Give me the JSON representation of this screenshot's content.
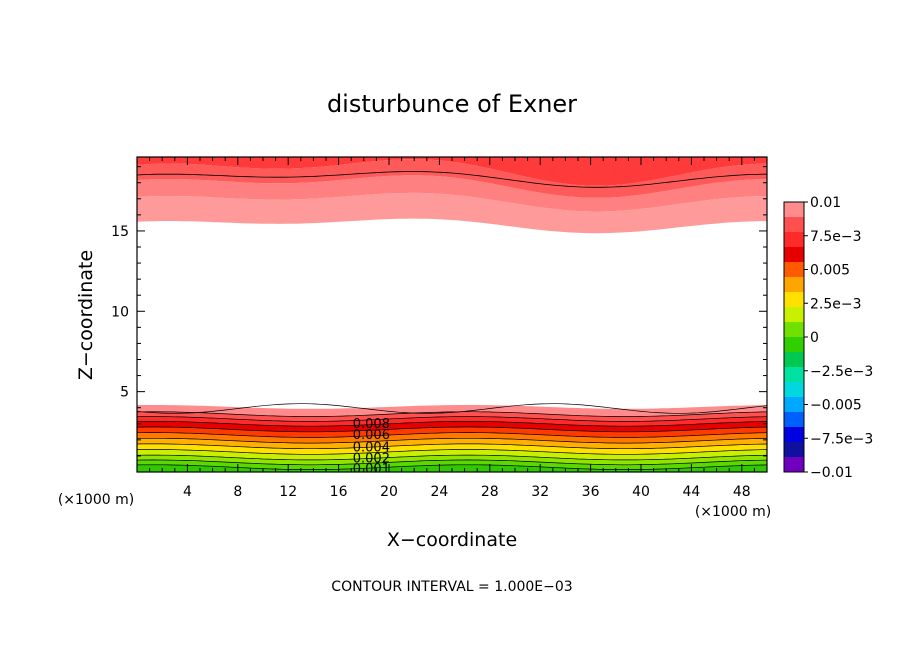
{
  "chart_data": {
    "type": "contour",
    "title": "disturbunce of Exner",
    "xlabel": "X−coordinate",
    "ylabel": "Z−coordinate",
    "x_unit": "(×1000 m)",
    "footer": "CONTOUR INTERVAL = 1.000E−03",
    "xlim": [
      0,
      50
    ],
    "ylim": [
      0,
      19.6
    ],
    "xticks": [
      4,
      8,
      12,
      16,
      20,
      24,
      28,
      32,
      36,
      40,
      44,
      48
    ],
    "yticks": [
      5,
      10,
      15
    ],
    "contour_interval": 0.001,
    "contour_labels": [
      "0.008",
      "0.006",
      "0.004",
      "0.002",
      "0.001"
    ],
    "colorbar": {
      "labels": [
        "0.01",
        "7.5e−3",
        "0.005",
        "2.5e−3",
        "0",
        "−2.5e−3",
        "−0.005",
        "−7.5e−3",
        "−0.01"
      ],
      "colors": [
        "#ff8c8c",
        "#ff5050",
        "#ff2a2a",
        "#e60000",
        "#ff5a00",
        "#ffa500",
        "#ffe000",
        "#c8f000",
        "#70e000",
        "#30d000",
        "#00c850",
        "#00e0a0",
        "#00d8e0",
        "#00a8ff",
        "#0060ff",
        "#0000e0",
        "#1010a0",
        "#7000c0"
      ]
    },
    "bands": [
      {
        "region": "lower",
        "z_low": 0.0,
        "value": 0.0105,
        "color": "#30c800"
      },
      {
        "region": "lower",
        "z_low": 0.3,
        "value": 0.0095,
        "color": "#5ad800"
      },
      {
        "region": "lower",
        "z_low": 0.6,
        "value": 0.0085,
        "color": "#90e400"
      },
      {
        "region": "lower",
        "z_low": 0.9,
        "value": 0.0075,
        "color": "#c8f000"
      },
      {
        "region": "lower",
        "z_low": 1.25,
        "value": 0.0065,
        "color": "#ffe000"
      },
      {
        "region": "lower",
        "z_low": 1.6,
        "value": 0.0055,
        "color": "#ffb000"
      },
      {
        "region": "lower",
        "z_low": 1.95,
        "value": 0.0045,
        "color": "#ff7800"
      },
      {
        "region": "lower",
        "z_low": 2.3,
        "value": 0.0035,
        "color": "#ff3a00"
      },
      {
        "region": "lower",
        "z_low": 2.65,
        "value": 0.0025,
        "color": "#e60000"
      },
      {
        "region": "lower",
        "z_low": 3.0,
        "value": 0.0015,
        "color": "#ff2a2a"
      },
      {
        "region": "lower",
        "z_low": 3.3,
        "value": 0.0005,
        "color": "#ff5050"
      },
      {
        "region": "lower",
        "z_low": 3.6,
        "value": 0.0,
        "color": "#ff8c8c"
      },
      {
        "region": "upper",
        "z_low": 15.4,
        "value": 0.001,
        "color": "#ff9a9a"
      },
      {
        "region": "upper",
        "z_low": 16.9,
        "value": 0.002,
        "color": "#ff8080"
      },
      {
        "region": "upper",
        "z_low": 17.9,
        "value": 0.003,
        "color": "#ff5a5a"
      },
      {
        "region": "upper",
        "z_low": 18.8,
        "value": 0.004,
        "color": "#ff3a3a"
      }
    ]
  }
}
